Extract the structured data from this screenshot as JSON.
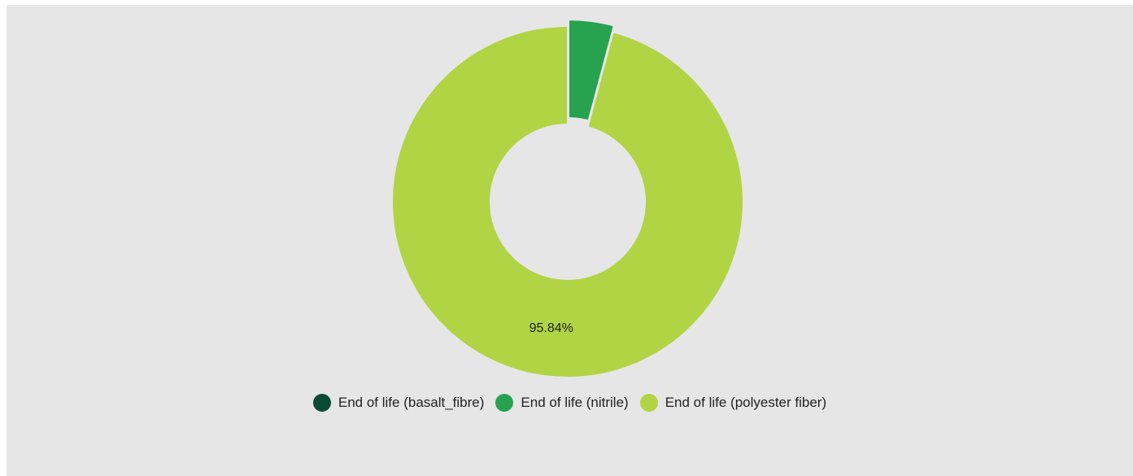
{
  "chart_data": {
    "type": "pie",
    "variant": "donut",
    "series": [
      {
        "name": "End of life (basalt_fibre)",
        "value": 0.0,
        "color": "#0b4a34"
      },
      {
        "name": "End of life (nitrile)",
        "value": 4.16,
        "color": "#27a24f"
      },
      {
        "name": "End of life (polyester fiber)",
        "value": 95.84,
        "color": "#b0d443"
      }
    ],
    "data_labels": [
      "",
      "",
      "95.84%"
    ],
    "legend_position": "bottom-center",
    "background": "#e6e6e6"
  }
}
